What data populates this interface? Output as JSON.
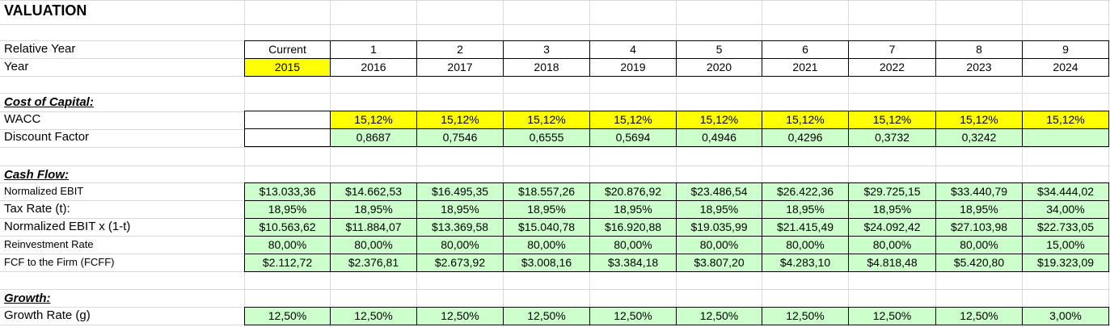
{
  "title": "VALUATION",
  "header": {
    "rows": [
      {
        "label": "Relative Year",
        "cells": [
          "Current",
          1,
          2,
          3,
          4,
          5,
          6,
          7,
          8,
          9
        ]
      },
      {
        "label": "Year",
        "cells": [
          2015,
          2016,
          2017,
          2018,
          2019,
          2020,
          2021,
          2022,
          2023,
          2024
        ]
      }
    ]
  },
  "sections": [
    {
      "title": "Cost of Capital:",
      "rows": [
        {
          "label": "WACC",
          "cells": [
            null,
            "15,12%",
            "15,12%",
            "15,12%",
            "15,12%",
            "15,12%",
            "15,12%",
            "15,12%",
            "15,12%",
            "15,12%"
          ]
        },
        {
          "label": "Discount Factor",
          "cells": [
            null,
            "0,8687",
            "0,7546",
            "0,6555",
            "0,5694",
            "0,4946",
            "0,4296",
            "0,3732",
            "0,3242",
            null
          ]
        }
      ]
    },
    {
      "title": "Cash Flow:",
      "rows": [
        {
          "label": "Normalized EBIT",
          "cells": [
            "$13.033,36",
            "$14.662,53",
            "$16.495,35",
            "$18.557,26",
            "$20.876,92",
            "$23.486,54",
            "$26.422,36",
            "$29.725,15",
            "$33.440,79",
            "$34.444,02"
          ]
        },
        {
          "label": "Tax Rate (t):",
          "cells": [
            "18,95%",
            "18,95%",
            "18,95%",
            "18,95%",
            "18,95%",
            "18,95%",
            "18,95%",
            "18,95%",
            "18,95%",
            "34,00%"
          ]
        },
        {
          "label": "Normalized EBIT x (1-t)",
          "cells": [
            "$10.563,62",
            "$11.884,07",
            "$13.369,58",
            "$15.040,78",
            "$16.920,88",
            "$19.035,99",
            "$21.415,49",
            "$24.092,42",
            "$27.103,98",
            "$22.733,05"
          ]
        },
        {
          "label": "Reinvestment Rate",
          "cells": [
            "80,00%",
            "80,00%",
            "80,00%",
            "80,00%",
            "80,00%",
            "80,00%",
            "80,00%",
            "80,00%",
            "80,00%",
            "15,00%"
          ]
        },
        {
          "label": "FCF to the Firm (FCFF)",
          "cells": [
            "$2.112,72",
            "$2.376,81",
            "$2.673,92",
            "$3.008,16",
            "$3.384,18",
            "$3.807,20",
            "$4.283,10",
            "$4.818,48",
            "$5.420,80",
            "$19.323,09"
          ]
        }
      ]
    },
    {
      "title": "Growth:",
      "rows": [
        {
          "label": "Growth Rate (g)",
          "cells": [
            "12,50%",
            "12,50%",
            "12,50%",
            "12,50%",
            "12,50%",
            "12,50%",
            "12,50%",
            "12,50%",
            "12,50%",
            "3,00%"
          ]
        }
      ]
    }
  ]
}
